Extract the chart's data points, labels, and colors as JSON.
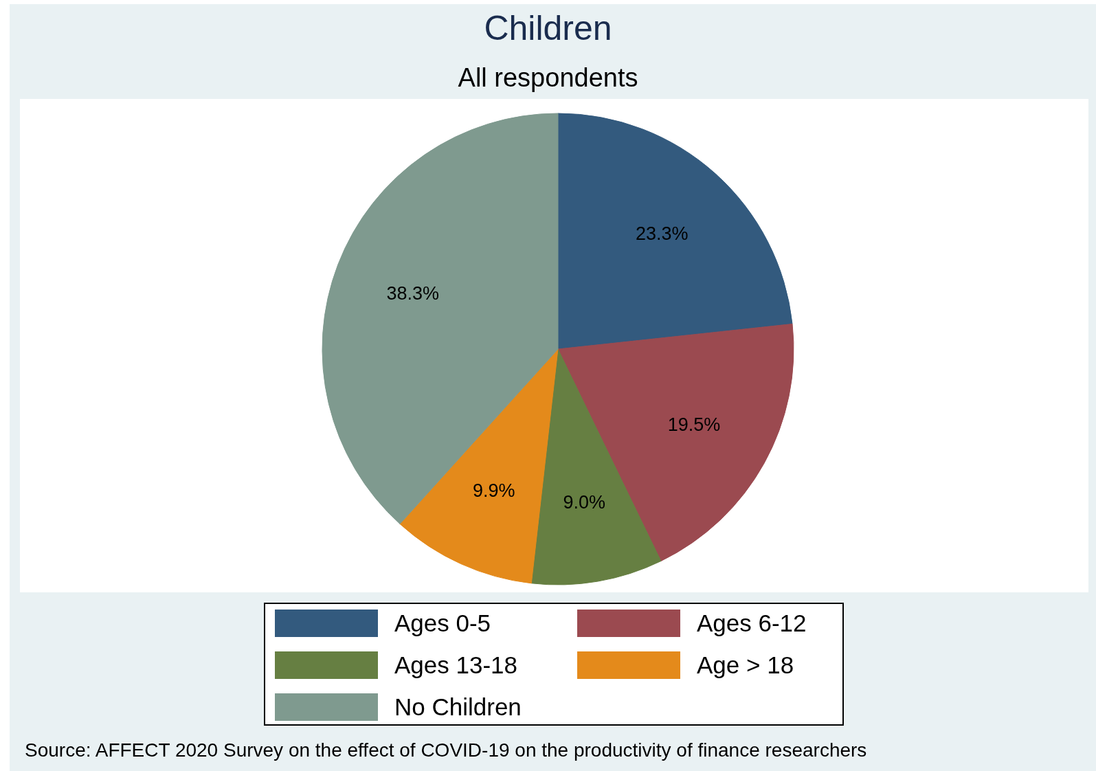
{
  "chart_data": {
    "type": "pie",
    "title": "Children",
    "subtitle": "All respondents",
    "categories": [
      "Ages 0-5",
      "Ages 6-12",
      "Ages 13-18",
      "Age > 18",
      "No Children"
    ],
    "values": [
      23.3,
      19.5,
      9.0,
      9.9,
      38.3
    ],
    "colors": [
      "#335a7e",
      "#9b4a50",
      "#667f42",
      "#e48a1b",
      "#7f9a8f"
    ],
    "value_labels": [
      "23.3%",
      "19.5%",
      "9.0%",
      "9.9%",
      "38.3%"
    ],
    "legend": "bottom",
    "annotations": [
      "Source: AFFECT 2020 Survey on the effect of COVID-19 on the productivity of finance researchers"
    ]
  }
}
